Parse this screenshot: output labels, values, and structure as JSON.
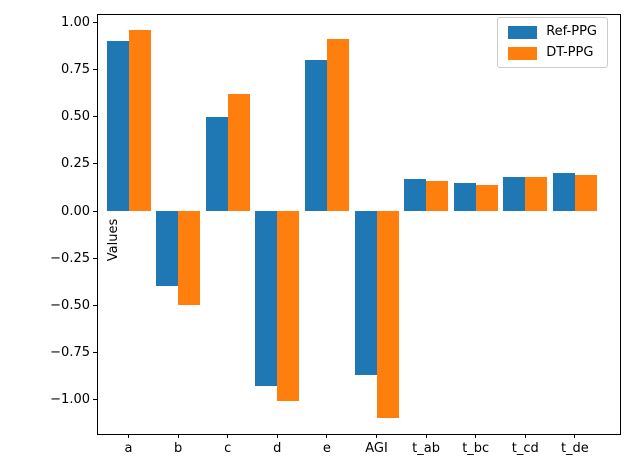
{
  "figure": {
    "background": "#ffffff"
  },
  "chart_data": {
    "type": "bar",
    "title": "",
    "xlabel": "",
    "ylabel": "Values",
    "categories": [
      "a",
      "b",
      "c",
      "d",
      "e",
      "AGI",
      "t_ab",
      "t_bc",
      "t_cd",
      "t_de"
    ],
    "series": [
      {
        "name": "Ref-PPG",
        "color": "#1f77b4",
        "values": [
          0.9,
          -0.4,
          0.5,
          -0.93,
          0.8,
          -0.87,
          0.17,
          0.15,
          0.18,
          0.2
        ]
      },
      {
        "name": "DT-PPG",
        "color": "#ff7f0e",
        "values": [
          0.96,
          -0.5,
          0.62,
          -1.01,
          0.91,
          -1.1,
          0.16,
          0.14,
          0.18,
          0.19
        ]
      }
    ],
    "ylim": [
      -1.19,
      1.04
    ],
    "yticks": [
      1.0,
      0.75,
      0.5,
      0.25,
      0.0,
      -0.25,
      -0.5,
      -0.75,
      -1.0
    ],
    "ytick_labels": [
      "1.00",
      "0.75",
      "0.50",
      "0.25",
      "0.00",
      "−0.25",
      "−0.50",
      "−0.75",
      "−1.00"
    ],
    "grid": false,
    "legend": {
      "position": "upper-right",
      "entries": [
        "Ref-PPG",
        "DT-PPG"
      ]
    }
  }
}
